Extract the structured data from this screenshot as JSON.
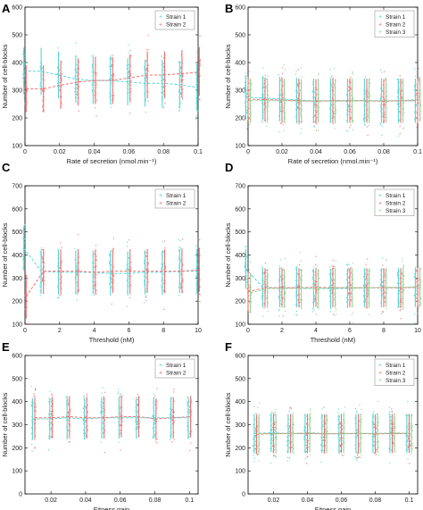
{
  "colors": {
    "strain1": "#4fd8d8",
    "strain2": "#f26d6d",
    "strain3": "#93d39a"
  },
  "chart_data": [
    {
      "type": "scatter",
      "panel_label": "A",
      "xlabel": "Rate of secretion (nmol.min⁻¹)",
      "ylabel": "Number of cell-blocks",
      "xlim": [
        0,
        0.1
      ],
      "ylim": [
        100,
        600
      ],
      "xticks": [
        0,
        0.02,
        0.04,
        0.06,
        0.08,
        0.1
      ],
      "xtick_labels": [
        "0",
        "0.02",
        "0.04",
        "0.06",
        "0.08",
        "0.1"
      ],
      "yticks": [
        100,
        200,
        300,
        400,
        500,
        600
      ],
      "legend": [
        "Strain 1",
        "Strain 2"
      ],
      "legend_position": "top-right",
      "x": [
        0,
        0.01,
        0.02,
        0.03,
        0.04,
        0.05,
        0.06,
        0.07,
        0.08,
        0.09,
        0.1
      ],
      "series": [
        {
          "name": "Strain 1",
          "mean": [
            370,
            368,
            355,
            340,
            335,
            335,
            330,
            325,
            325,
            320,
            310
          ],
          "spread": 85
        },
        {
          "name": "Strain 2",
          "mean": [
            305,
            305,
            318,
            330,
            335,
            335,
            345,
            355,
            355,
            360,
            365
          ],
          "spread": 85
        }
      ]
    },
    {
      "type": "scatter",
      "panel_label": "B",
      "xlabel": "Rate of secretion (nmol.min⁻¹)",
      "ylabel": "Number of cell-blocks",
      "xlim": [
        0,
        0.1
      ],
      "ylim": [
        100,
        600
      ],
      "xticks": [
        0,
        0.02,
        0.04,
        0.06,
        0.08,
        0.1
      ],
      "xtick_labels": [
        "0",
        "0.02",
        "0.04",
        "0.06",
        "0.08",
        "0.1"
      ],
      "yticks": [
        100,
        200,
        300,
        400,
        500,
        600
      ],
      "legend": [
        "Strain 1",
        "Strain 2",
        "Strain 3"
      ],
      "legend_position": "top-right",
      "x": [
        0,
        0.01,
        0.02,
        0.03,
        0.04,
        0.05,
        0.06,
        0.07,
        0.08,
        0.09,
        0.1
      ],
      "series": [
        {
          "name": "Strain 1",
          "mean": [
            275,
            272,
            268,
            265,
            262,
            262,
            262,
            262,
            262,
            262,
            262
          ],
          "spread": 80
        },
        {
          "name": "Strain 2",
          "mean": [
            268,
            266,
            264,
            262,
            260,
            262,
            262,
            262,
            260,
            262,
            262
          ],
          "spread": 80
        },
        {
          "name": "Strain 3",
          "mean": [
            262,
            262,
            262,
            260,
            262,
            260,
            262,
            262,
            262,
            262,
            268
          ],
          "spread": 80
        }
      ]
    },
    {
      "type": "scatter",
      "panel_label": "C",
      "xlabel": "Threshold (nM)",
      "ylabel": "Number of cell-blocks",
      "xlim": [
        0,
        10
      ],
      "ylim": [
        100,
        700
      ],
      "xticks": [
        0,
        2,
        4,
        6,
        8,
        10
      ],
      "xtick_labels": [
        "0",
        "2",
        "4",
        "6",
        "8",
        "10"
      ],
      "yticks": [
        100,
        200,
        300,
        400,
        500,
        600,
        700
      ],
      "legend": [
        "Strain 1",
        "Strain 2"
      ],
      "legend_position": "top-right",
      "x": [
        0,
        1,
        2,
        3,
        4,
        5,
        6,
        7,
        8,
        9,
        10
      ],
      "series": [
        {
          "name": "Strain 1",
          "mean": [
            430,
            330,
            325,
            325,
            325,
            320,
            320,
            325,
            325,
            330,
            330
          ],
          "spread": 95
        },
        {
          "name": "Strain 2",
          "mean": [
            220,
            330,
            330,
            330,
            325,
            330,
            330,
            330,
            330,
            330,
            335
          ],
          "spread": 95
        }
      ]
    },
    {
      "type": "scatter",
      "panel_label": "D",
      "xlabel": "Threshold (nM)",
      "ylabel": "Number of cell-blocks",
      "xlim": [
        0,
        10
      ],
      "ylim": [
        100,
        700
      ],
      "xticks": [
        0,
        2,
        4,
        6,
        8,
        10
      ],
      "xtick_labels": [
        "0",
        "2",
        "4",
        "6",
        "8",
        "10"
      ],
      "yticks": [
        100,
        200,
        300,
        400,
        500,
        600,
        700
      ],
      "legend": [
        "Strain 1",
        "Strain 2",
        "Strain 3"
      ],
      "legend_position": "top-right",
      "x": [
        0,
        1,
        2,
        3,
        4,
        5,
        6,
        7,
        8,
        9,
        10
      ],
      "series": [
        {
          "name": "Strain 1",
          "mean": [
            340,
            260,
            258,
            258,
            255,
            255,
            255,
            258,
            258,
            258,
            260
          ],
          "spread": 85
        },
        {
          "name": "Strain 2",
          "mean": [
            240,
            258,
            258,
            258,
            260,
            258,
            258,
            258,
            258,
            258,
            260
          ],
          "spread": 85
        },
        {
          "name": "Strain 3",
          "mean": [
            235,
            255,
            255,
            255,
            255,
            258,
            258,
            258,
            260,
            260,
            262
          ],
          "spread": 85
        }
      ]
    },
    {
      "type": "scatter",
      "panel_label": "E",
      "xlabel": "Fitness gain",
      "ylabel": "Number of cell-blocks",
      "xlim": [
        0.005,
        0.105
      ],
      "ylim": [
        0,
        600
      ],
      "xticks": [
        0.02,
        0.04,
        0.06,
        0.08,
        0.1
      ],
      "xtick_labels": [
        "0.02",
        "0.04",
        "0.06",
        "0.08",
        "0.1"
      ],
      "yticks": [
        0,
        100,
        200,
        300,
        400,
        500,
        600
      ],
      "legend": [
        "Strain 1",
        "Strain 2"
      ],
      "legend_position": "top-right",
      "x": [
        0.01,
        0.02,
        0.03,
        0.04,
        0.05,
        0.06,
        0.07,
        0.08,
        0.09,
        0.1
      ],
      "series": [
        {
          "name": "Strain 1",
          "mean": [
            325,
            325,
            330,
            325,
            330,
            330,
            330,
            330,
            330,
            330
          ],
          "spread": 90
        },
        {
          "name": "Strain 2",
          "mean": [
            330,
            330,
            335,
            330,
            330,
            335,
            335,
            325,
            330,
            335
          ],
          "spread": 90
        }
      ]
    },
    {
      "type": "scatter",
      "panel_label": "F",
      "xlabel": "Fitness gain",
      "ylabel": "Number of cell-blocks",
      "xlim": [
        0.005,
        0.105
      ],
      "ylim": [
        0,
        600
      ],
      "xticks": [
        0.02,
        0.04,
        0.06,
        0.08,
        0.1
      ],
      "xtick_labels": [
        "0.02",
        "0.04",
        "0.06",
        "0.08",
        "0.1"
      ],
      "yticks": [
        0,
        100,
        200,
        300,
        400,
        500,
        600
      ],
      "legend": [
        "Strain 1",
        "Strain 2",
        "Strain 3"
      ],
      "legend_position": "top-right",
      "x": [
        0.01,
        0.02,
        0.03,
        0.04,
        0.05,
        0.06,
        0.07,
        0.08,
        0.09,
        0.1
      ],
      "series": [
        {
          "name": "Strain 1",
          "mean": [
            262,
            265,
            262,
            262,
            262,
            260,
            262,
            262,
            262,
            262
          ],
          "spread": 85
        },
        {
          "name": "Strain 2",
          "mean": [
            258,
            262,
            262,
            262,
            260,
            262,
            262,
            260,
            262,
            262
          ],
          "spread": 85
        },
        {
          "name": "Strain 3",
          "mean": [
            262,
            260,
            262,
            265,
            262,
            262,
            262,
            262,
            265,
            262
          ],
          "spread": 85
        }
      ]
    }
  ]
}
